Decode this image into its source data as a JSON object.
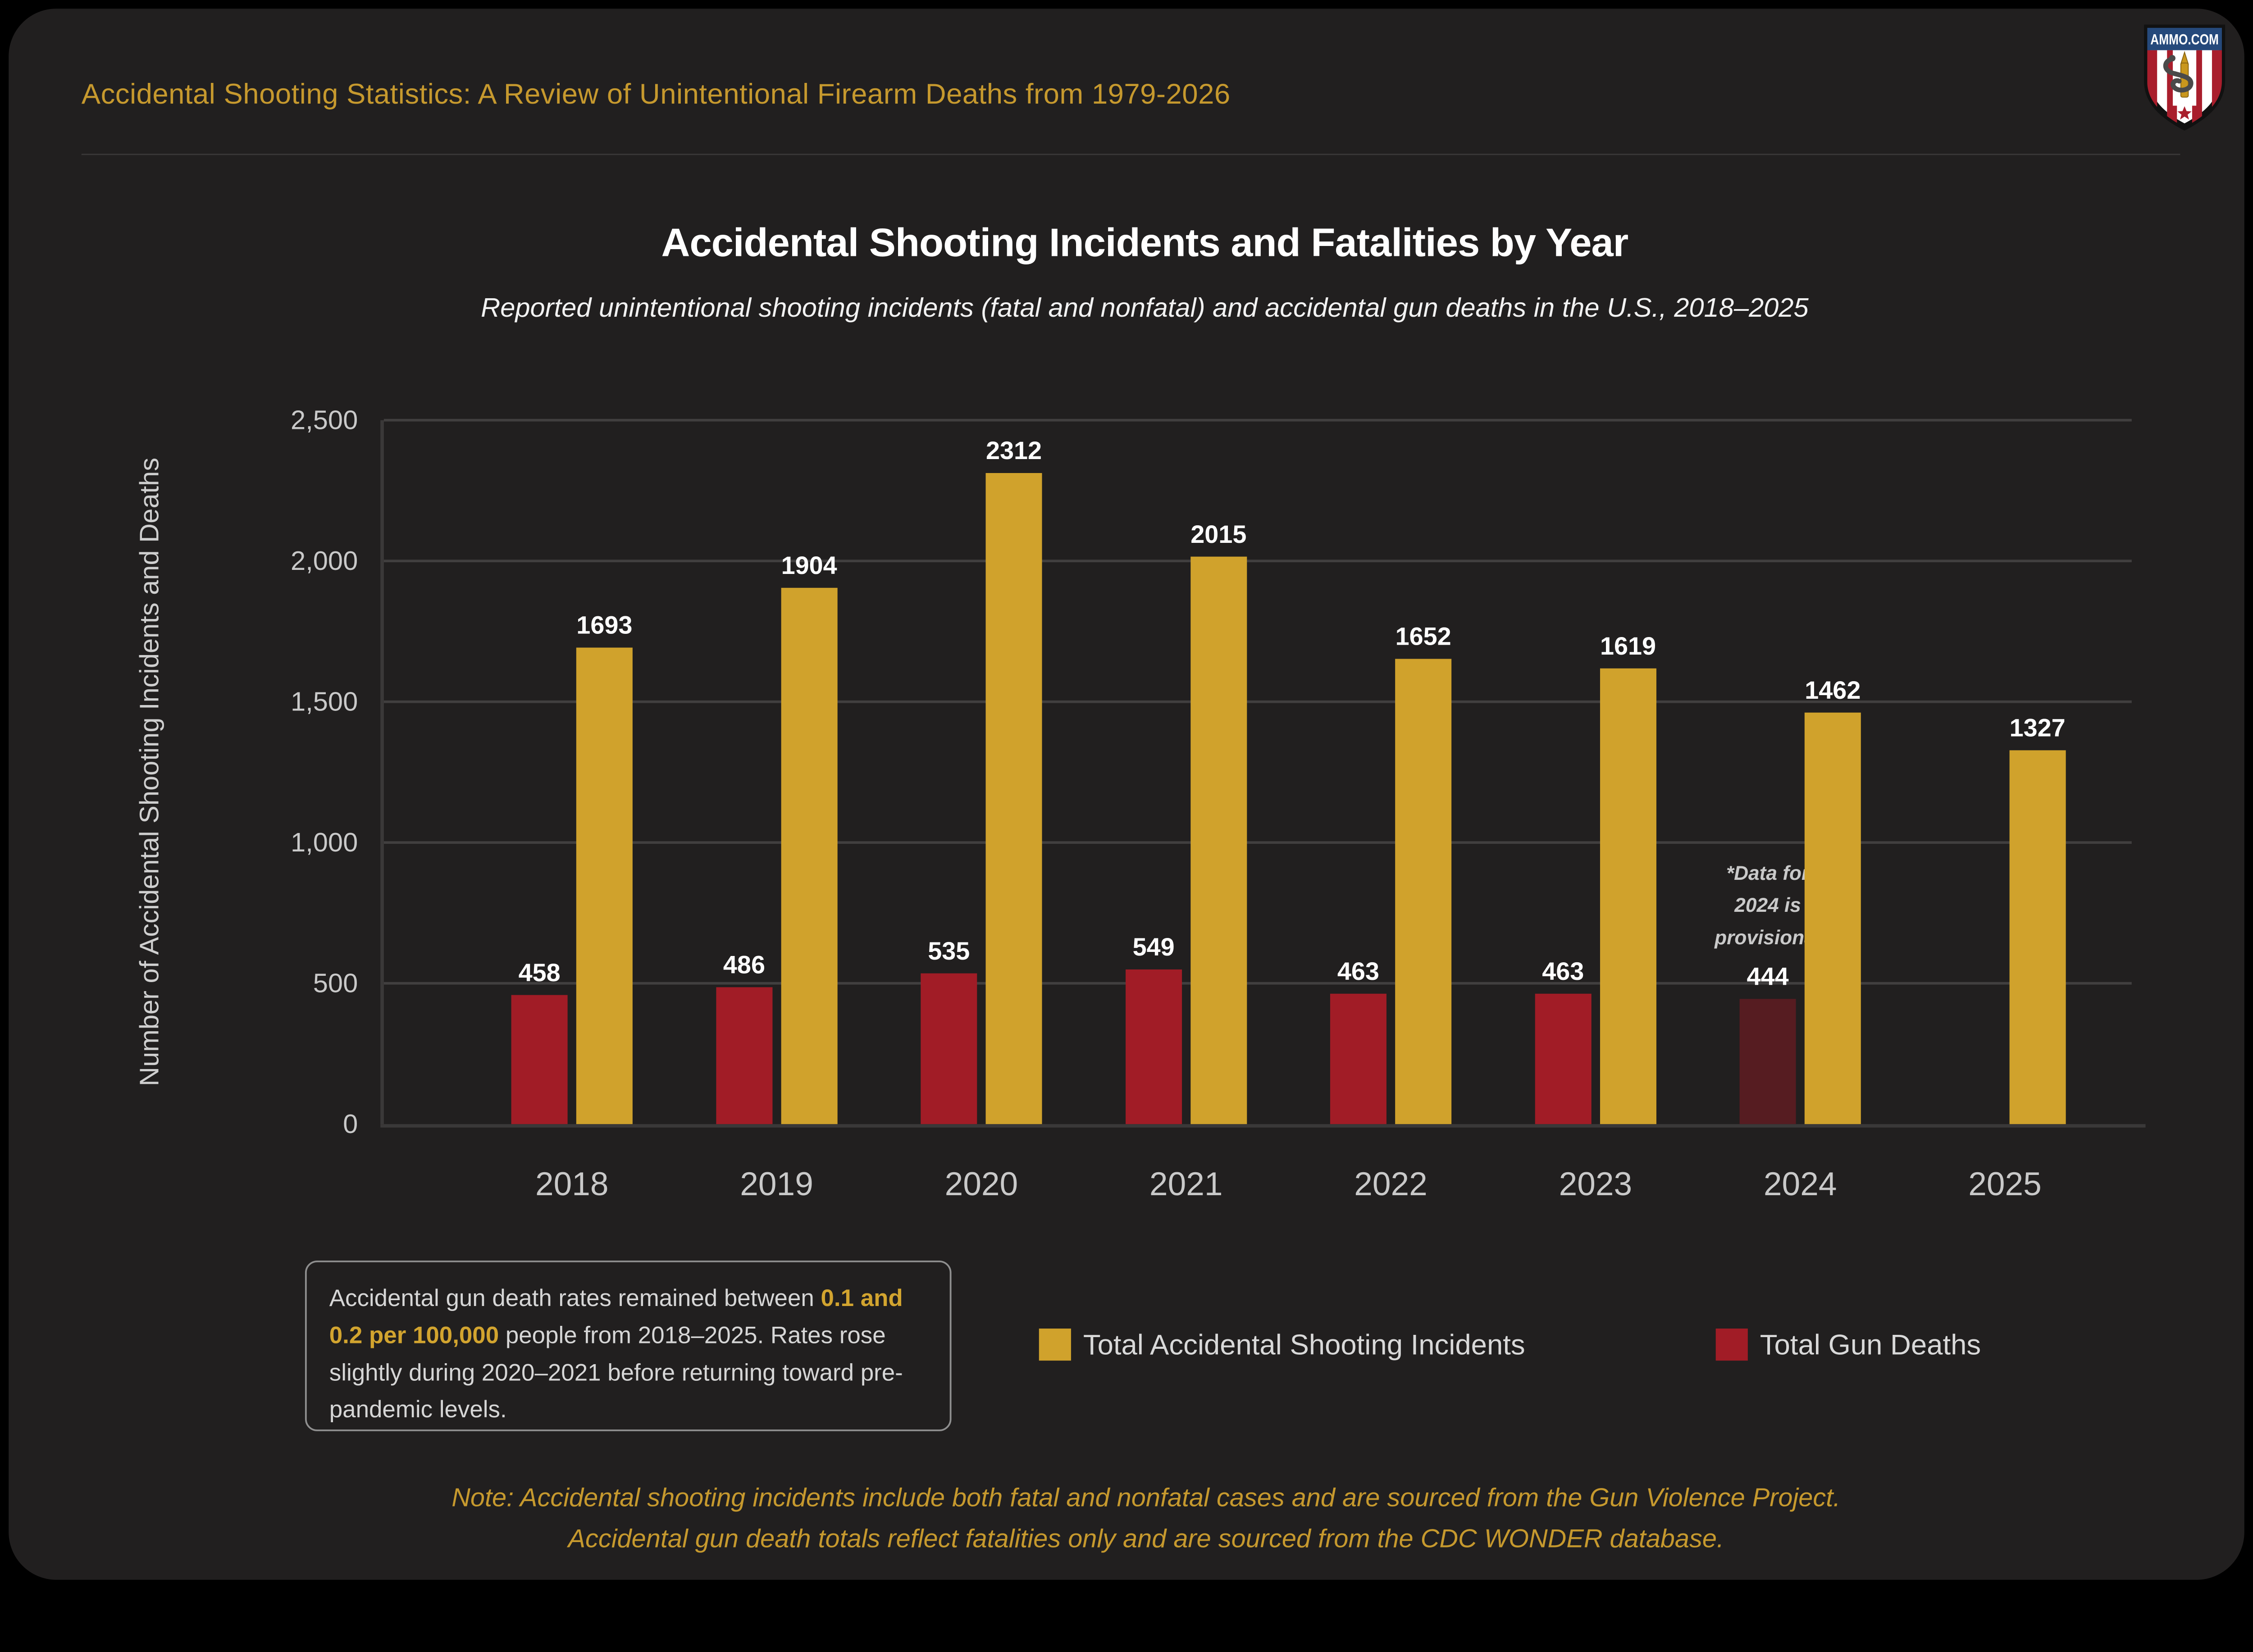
{
  "header": {
    "title": "Accidental Shooting Statistics: A Review of Unintentional Firearm Deaths from 1979-2026",
    "logo_text": "AMMO.COM"
  },
  "chart": {
    "title": "Accidental Shooting Incidents and Fatalities by Year",
    "subtitle": "Reported unintentional shooting incidents (fatal and nonfatal) and accidental gun deaths in the U.S., 2018–2025",
    "y_axis_label": "Number of Accidental Shooting Incidents and Deaths",
    "y_ticks": [
      "0",
      "500",
      "1,000",
      "1,500",
      "2,000",
      "2,500"
    ]
  },
  "chart_data": {
    "type": "bar",
    "categories": [
      "2018",
      "2019",
      "2020",
      "2021",
      "2022",
      "2023",
      "2024",
      "2025"
    ],
    "series": [
      {
        "name": "Total Accidental Shooting Incidents",
        "color": "#D0A22C",
        "values": [
          1693,
          1904,
          2312,
          2015,
          1652,
          1619,
          1462,
          1327
        ]
      },
      {
        "name": "Total Gun Deaths",
        "color": "#A11C26",
        "values": [
          458,
          486,
          535,
          549,
          463,
          463,
          444,
          null
        ]
      }
    ],
    "title": "Accidental Shooting Incidents and Fatalities by Year",
    "xlabel": "",
    "ylabel": "Number of Accidental Shooting Incidents and Deaths",
    "ylim": [
      0,
      2500
    ],
    "grid": true,
    "legend_position": "bottom",
    "provisional": {
      "category": "2024",
      "series": "Total Gun Deaths",
      "bar_color": "#561C21",
      "note_lines": [
        "*Data for",
        "2024 is",
        "provisional"
      ]
    }
  },
  "info_box": {
    "text_before": "Accidental gun death rates remained between ",
    "highlight": "0.1 and 0.2 per 100,000",
    "text_after": " people from 2018–2025. Rates rose slightly during 2020–2021 before returning toward pre-pandemic levels."
  },
  "note_lines": [
    "Note: Accidental shooting incidents include both fatal and nonfatal cases and are sourced from the Gun Violence Project.",
    "Accidental gun death totals reflect fatalities only and are sourced from the CDC WONDER database."
  ],
  "colors": {
    "card_background": "#211F1F",
    "outer_background": "#000000",
    "gold_accent": "#C6992E",
    "incidents_bar": "#D0A22C",
    "deaths_bar": "#A11C26",
    "provisional_bar": "#561C21",
    "grid": "#413F3F",
    "tick_text": "#C9C9C9"
  }
}
